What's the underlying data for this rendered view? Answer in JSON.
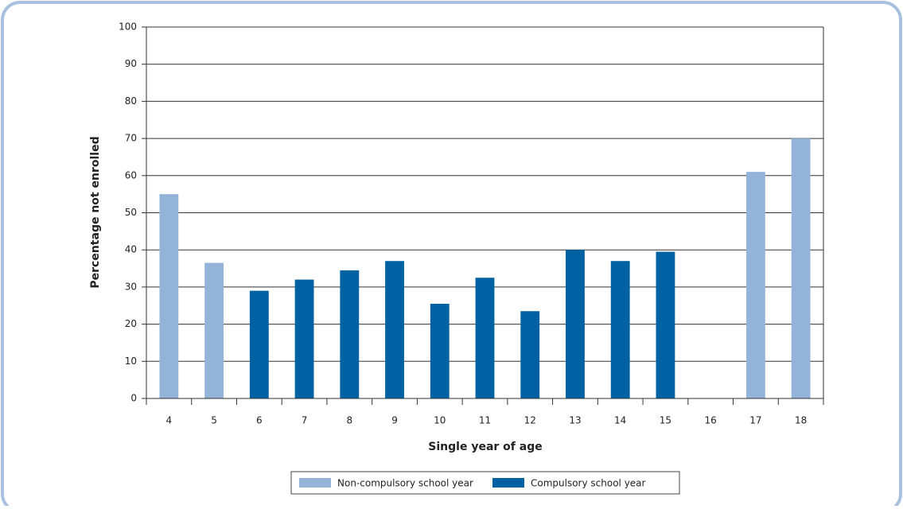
{
  "chart_data": {
    "type": "bar",
    "x_label": "Single year of age",
    "y_label": "Percentage not enrolled",
    "categories": [
      "4",
      "5",
      "6",
      "7",
      "8",
      "9",
      "10",
      "11",
      "12",
      "13",
      "14",
      "15",
      "16",
      "17",
      "18"
    ],
    "series": [
      {
        "name": "Non-compulsory school year",
        "color": "#93b3d9",
        "values": [
          55,
          36.5,
          null,
          null,
          null,
          null,
          null,
          null,
          null,
          null,
          null,
          null,
          null,
          61,
          70
        ]
      },
      {
        "name": "Compulsory school year",
        "color": "#0062a3",
        "values": [
          null,
          null,
          29,
          32,
          34.5,
          37,
          25.5,
          32.5,
          23.5,
          40,
          37,
          39.5,
          null,
          null,
          null
        ]
      }
    ],
    "ylim": [
      0,
      100
    ],
    "yticks": [
      0,
      10,
      20,
      30,
      40,
      50,
      60,
      70,
      80,
      90,
      100
    ],
    "grid": true
  }
}
